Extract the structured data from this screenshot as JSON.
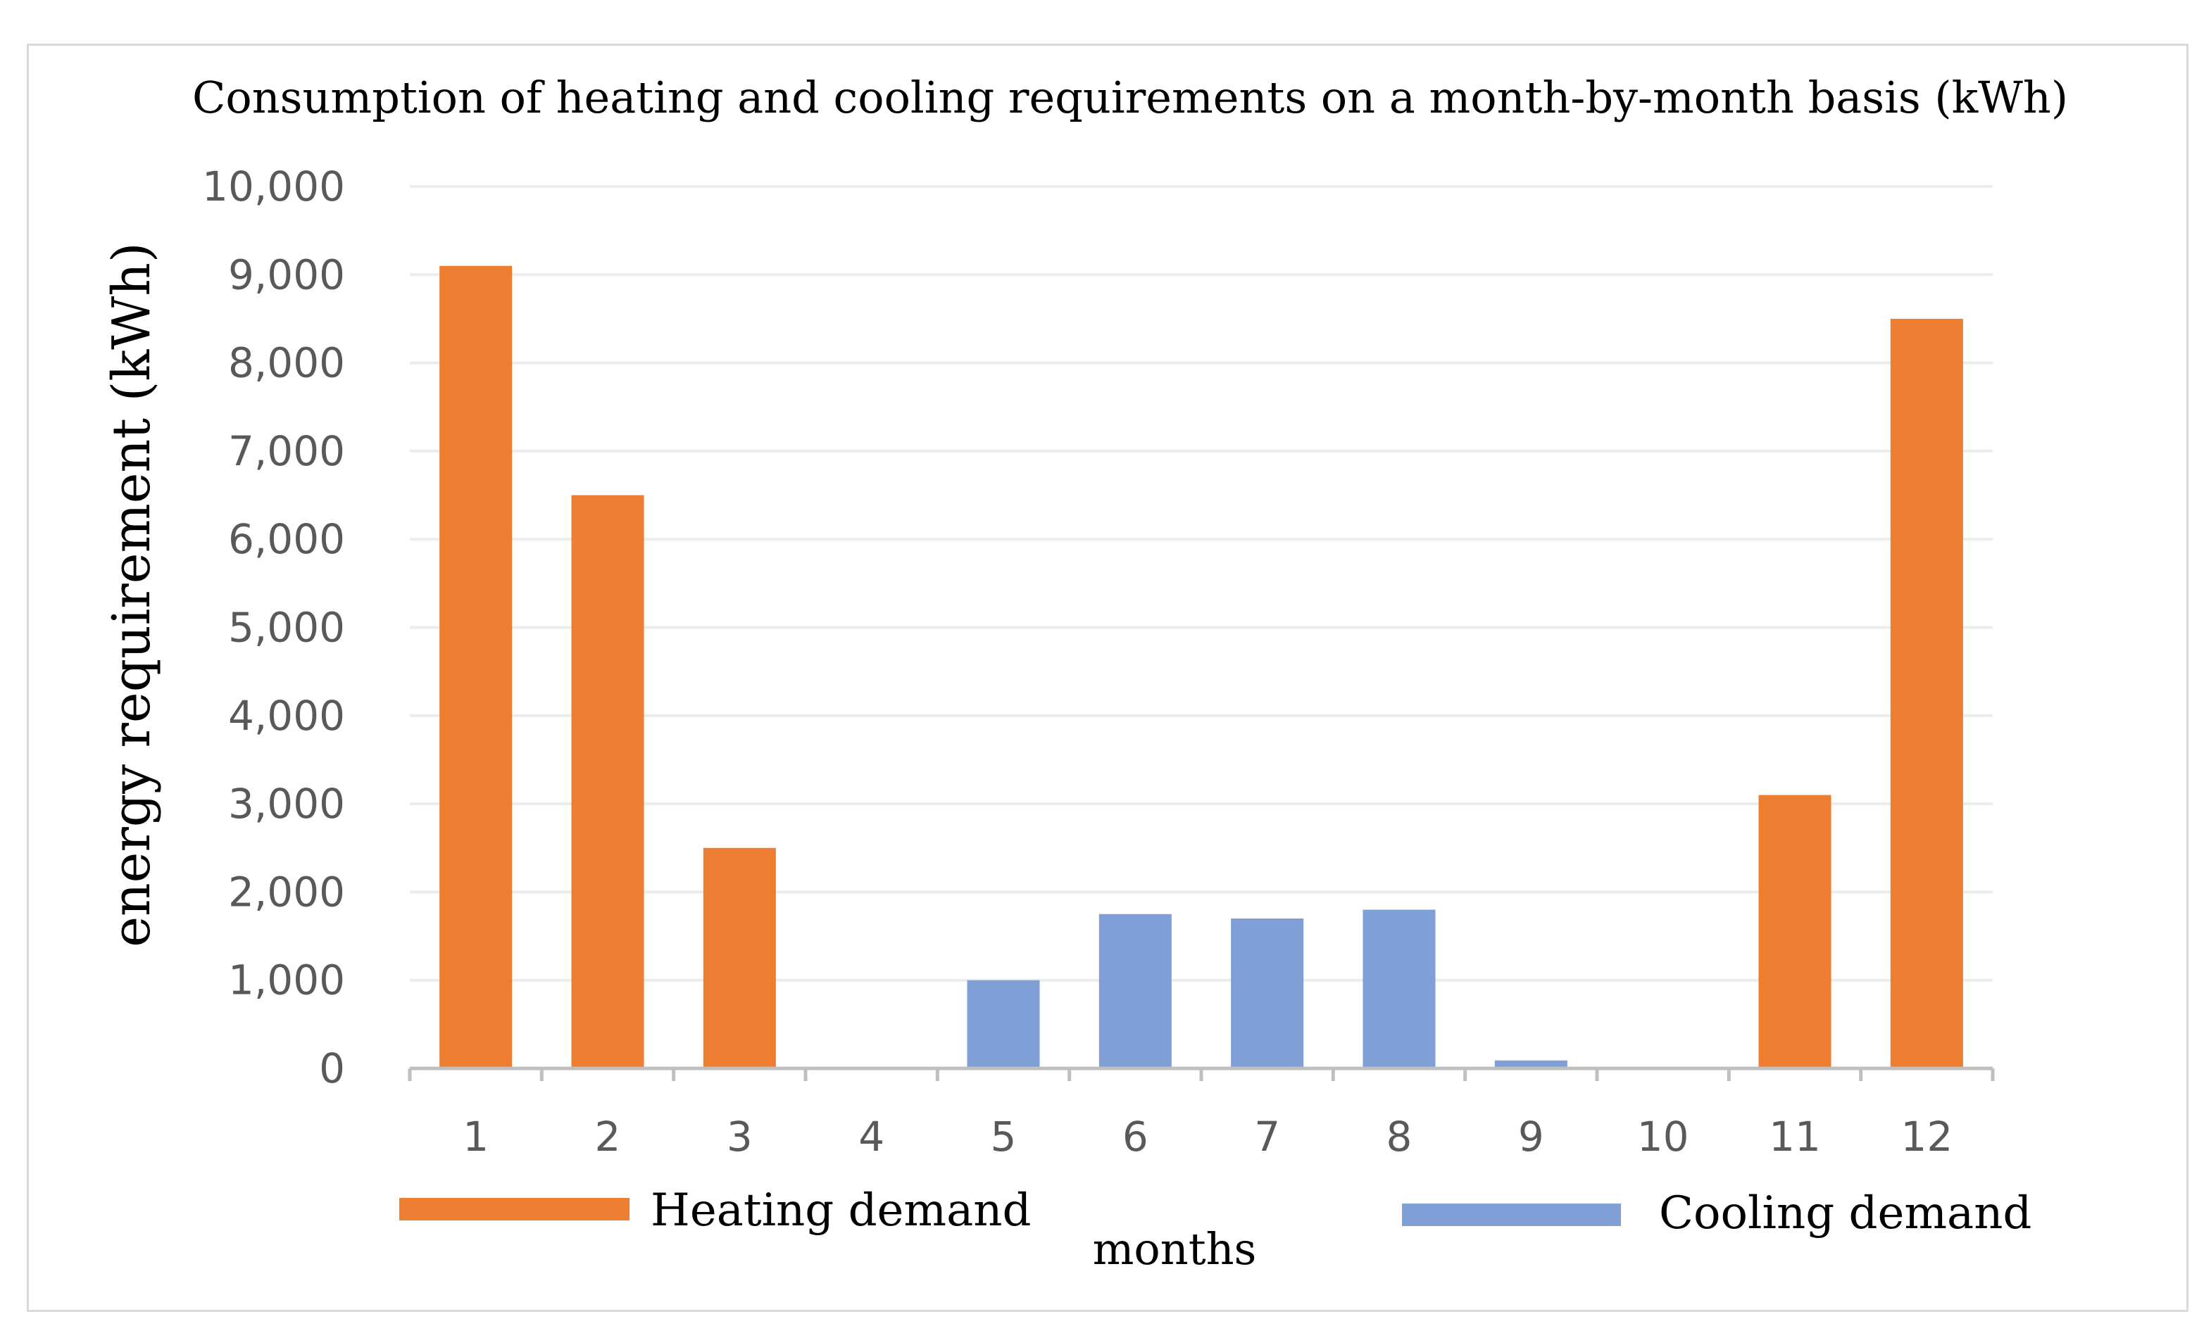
{
  "chart_data": {
    "type": "bar",
    "title": "Consumption of heating and cooling requirements on a month-by-month basis (kWh)",
    "xlabel": "months",
    "ylabel": "energy requirement (kWh)",
    "categories": [
      "1",
      "2",
      "3",
      "4",
      "5",
      "6",
      "7",
      "8",
      "9",
      "10",
      "11",
      "12"
    ],
    "ylim": [
      0,
      10000
    ],
    "yticks": [
      0,
      1000,
      2000,
      3000,
      4000,
      5000,
      6000,
      7000,
      8000,
      9000,
      10000
    ],
    "ytick_labels": [
      "0",
      "1,000",
      "2,000",
      "3,000",
      "4,000",
      "5,000",
      "6,000",
      "7,000",
      "8,000",
      "9,000",
      "10,000"
    ],
    "grid": true,
    "stacked": true,
    "series": [
      {
        "name": "Heating demand",
        "color": "#ED7D31",
        "values": [
          9100,
          6500,
          2500,
          0,
          0,
          0,
          0,
          0,
          0,
          0,
          3100,
          8500
        ]
      },
      {
        "name": "Cooling demand",
        "color": "#7F9FD6",
        "values": [
          0,
          0,
          0,
          0,
          1000,
          1750,
          1700,
          1800,
          90,
          0,
          0,
          0
        ]
      }
    ],
    "legend_position": "bottom"
  }
}
